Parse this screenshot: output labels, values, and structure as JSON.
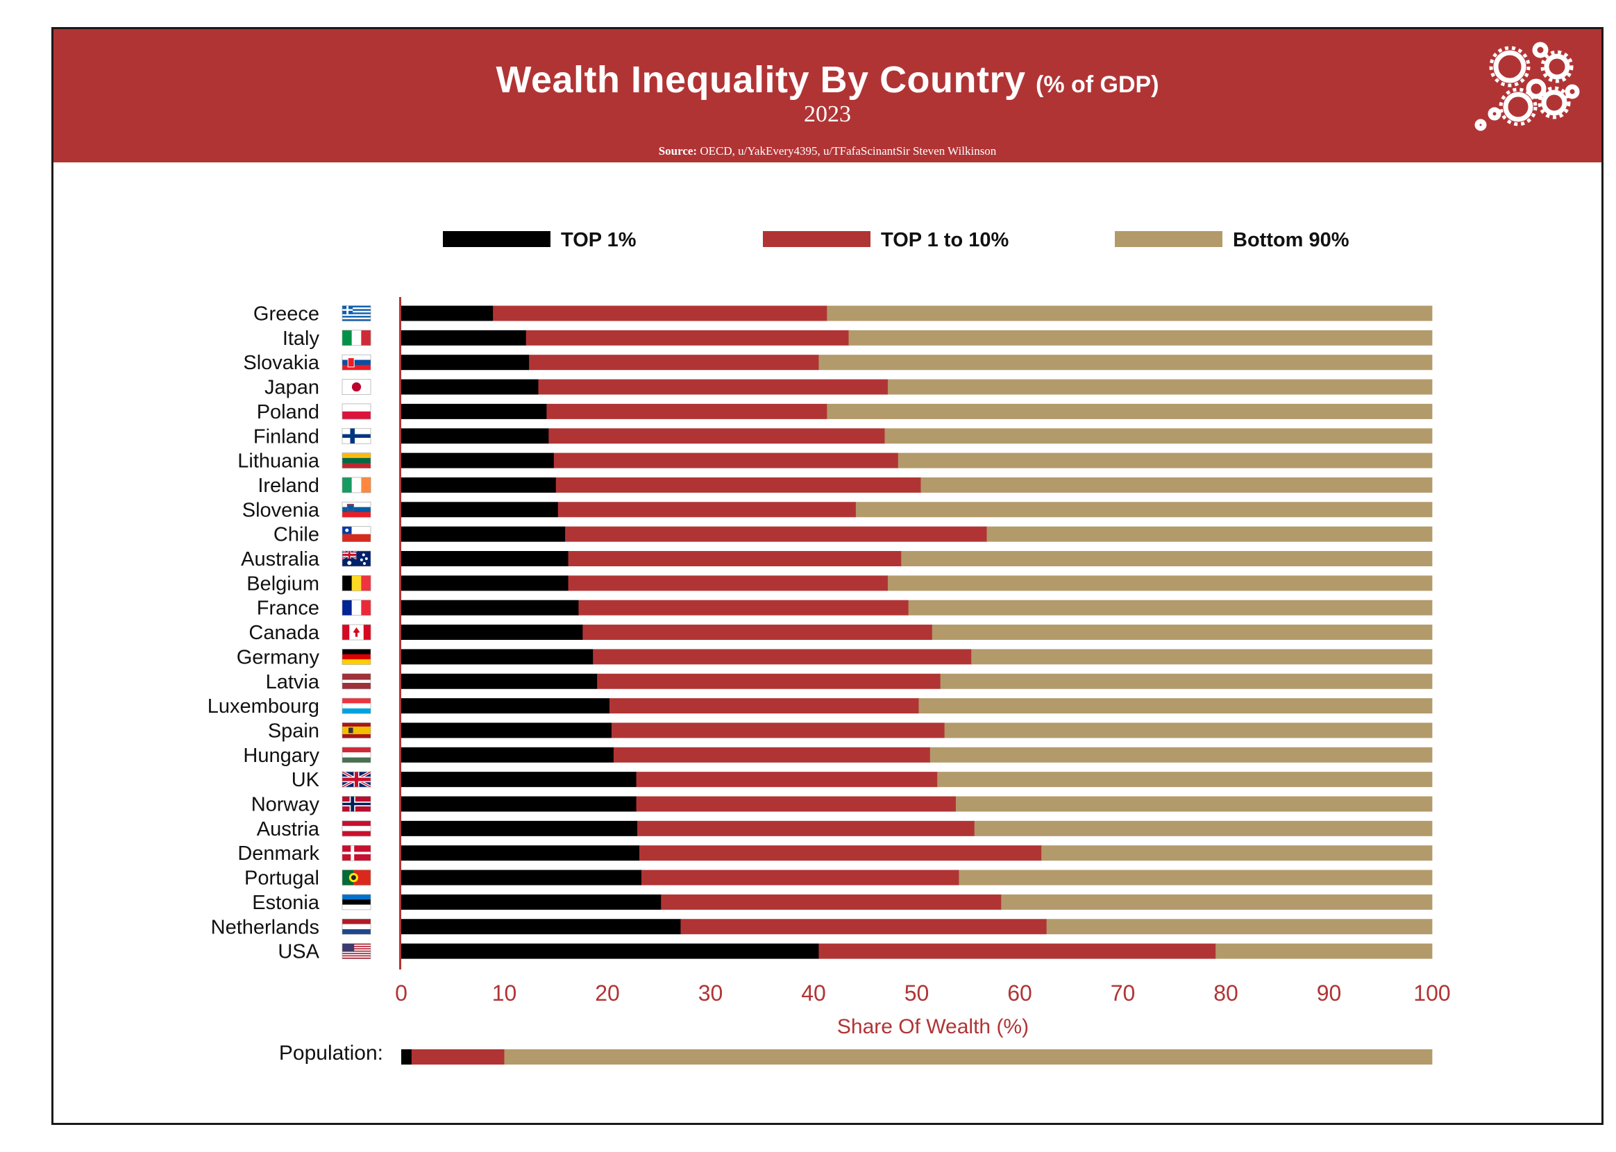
{
  "header": {
    "title": "Wealth Inequality By Country",
    "title_unit": "(% of GDP)",
    "year": "2023",
    "source_label": "Source:",
    "source_text": " OECD, u/YakEvery4395, u/TFafaScinantSir Steven Wilkinson",
    "logo_icon": "gears-icon"
  },
  "colors": {
    "header_bg": "#b13435",
    "top1": "#000000",
    "top1to10": "#b13435",
    "bottom90": "#b39a6a",
    "axis": "#b13435"
  },
  "chart_data": {
    "type": "bar",
    "orientation": "horizontal",
    "stacked": true,
    "xlabel": "Share Of Wealth (%)",
    "ylabel": "",
    "xlim": [
      0,
      100
    ],
    "xticks": [
      "0",
      "10",
      "20",
      "30",
      "40",
      "50",
      "60",
      "70",
      "80",
      "90",
      "100"
    ],
    "legend_position": "top",
    "categories": [
      "Greece",
      "Italy",
      "Slovakia",
      "Japan",
      "Poland",
      "Finland",
      "Lithuania",
      "Ireland",
      "Slovenia",
      "Chile",
      "Australia",
      "Belgium",
      "France",
      "Canada",
      "Germany",
      "Latvia",
      "Luxembourg",
      "Spain",
      "Hungary",
      "UK",
      "Norway",
      "Austria",
      "Denmark",
      "Portugal",
      "Estonia",
      "Netherlands",
      "USA"
    ],
    "series": [
      {
        "name": "TOP 1%",
        "values": [
          8.9,
          12.1,
          12.4,
          13.3,
          14.1,
          14.3,
          14.8,
          15.0,
          15.2,
          15.9,
          16.2,
          16.2,
          17.2,
          17.6,
          18.6,
          19.0,
          20.2,
          20.4,
          20.6,
          22.8,
          22.8,
          22.9,
          23.1,
          23.3,
          25.2,
          27.1,
          40.5
        ]
      },
      {
        "name": "TOP 1 to 10%",
        "values": [
          32.4,
          31.3,
          28.1,
          33.9,
          27.2,
          32.6,
          33.4,
          35.4,
          28.9,
          40.9,
          32.3,
          31.0,
          32.0,
          33.9,
          36.7,
          33.3,
          30.0,
          32.3,
          30.7,
          29.2,
          31.0,
          32.7,
          39.0,
          30.8,
          33.0,
          35.5,
          38.5
        ]
      },
      {
        "name": "Bottom 90%",
        "values": [
          58.7,
          56.6,
          59.5,
          52.8,
          58.7,
          53.1,
          51.8,
          49.6,
          55.9,
          43.2,
          51.5,
          52.8,
          50.8,
          48.5,
          44.7,
          47.7,
          49.8,
          47.3,
          48.7,
          48.0,
          46.2,
          44.4,
          37.9,
          45.9,
          41.8,
          37.4,
          21.0
        ]
      }
    ],
    "flags": [
      "greece",
      "italy",
      "slovakia",
      "japan",
      "poland",
      "finland",
      "lithuania",
      "ireland",
      "slovenia",
      "chile",
      "australia",
      "belgium",
      "france",
      "canada",
      "germany",
      "latvia",
      "luxembourg",
      "spain",
      "hungary",
      "uk",
      "norway",
      "austria",
      "denmark",
      "portugal",
      "estonia",
      "netherlands",
      "usa"
    ],
    "population": {
      "label": "Population:",
      "values": [
        1,
        9,
        90
      ]
    }
  }
}
